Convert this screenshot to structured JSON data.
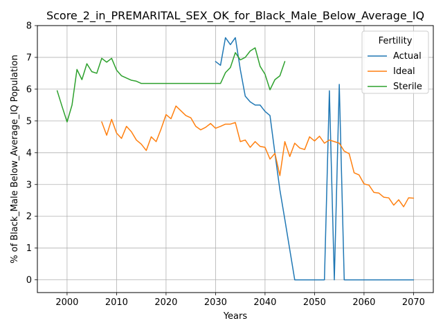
{
  "chart_data": {
    "type": "line",
    "title": "Score_2_in_PREMARITAL_SEX_OK_for_Black_Male_Below_Average_IQ",
    "xlabel": "Years",
    "ylabel": "% of Black_Male Below_Average_IQ Population",
    "xlim": [
      1994,
      2074
    ],
    "ylim": [
      -0.4,
      8.0
    ],
    "x_ticks": [
      2000,
      2010,
      2020,
      2030,
      2040,
      2050,
      2060,
      2070
    ],
    "y_ticks": [
      0,
      1,
      2,
      3,
      4,
      5,
      6,
      7,
      8
    ],
    "grid": true,
    "legend": {
      "title": "Fertility",
      "placement": "top-right"
    },
    "series": [
      {
        "name": "Actual",
        "color": "#1f77b4",
        "x": [
          2030,
          2031,
          2032,
          2033,
          2034,
          2035,
          2036,
          2037,
          2038,
          2039,
          2040,
          2041,
          2042,
          2043,
          2044,
          2045,
          2046,
          2047,
          2048,
          2049,
          2050,
          2051,
          2052,
          2053,
          2054,
          2055,
          2056,
          2057,
          2058,
          2059,
          2060,
          2061,
          2062,
          2063,
          2064,
          2065,
          2066,
          2067,
          2068,
          2069,
          2070
        ],
        "y": [
          6.87,
          6.75,
          7.62,
          7.4,
          7.62,
          6.62,
          5.78,
          5.6,
          5.5,
          5.5,
          5.3,
          5.17,
          3.98,
          2.83,
          1.9,
          0.95,
          0.0,
          0.0,
          0.0,
          0.0,
          0.0,
          0.0,
          0.0,
          5.95,
          0.0,
          6.15,
          0.0,
          0.0,
          0.0,
          0.0,
          0.0,
          0.0,
          0.0,
          0.0,
          0.0,
          0.0,
          0.0,
          0.0,
          0.0,
          0.0,
          0.0
        ]
      },
      {
        "name": "Ideal",
        "color": "#ff7f0e",
        "x": [
          2007,
          2008,
          2009,
          2010,
          2011,
          2012,
          2013,
          2014,
          2015,
          2016,
          2017,
          2018,
          2019,
          2020,
          2021,
          2022,
          2023,
          2024,
          2025,
          2026,
          2027,
          2028,
          2029,
          2030,
          2031,
          2032,
          2033,
          2034,
          2035,
          2036,
          2037,
          2038,
          2039,
          2040,
          2041,
          2042,
          2043,
          2044,
          2045,
          2046,
          2047,
          2048,
          2049,
          2050,
          2051,
          2052,
          2053,
          2054,
          2055,
          2056,
          2057,
          2058,
          2059,
          2060,
          2061,
          2062,
          2063,
          2064,
          2065,
          2066,
          2067,
          2068,
          2069,
          2070
        ],
        "y": [
          4.97,
          4.55,
          5.05,
          4.62,
          4.45,
          4.83,
          4.66,
          4.4,
          4.27,
          4.07,
          4.5,
          4.35,
          4.75,
          5.2,
          5.07,
          5.47,
          5.32,
          5.17,
          5.1,
          4.83,
          4.72,
          4.8,
          4.92,
          4.77,
          4.83,
          4.9,
          4.9,
          4.95,
          4.35,
          4.4,
          4.17,
          4.35,
          4.2,
          4.17,
          3.8,
          3.98,
          3.28,
          4.35,
          3.88,
          4.3,
          4.15,
          4.1,
          4.5,
          4.37,
          4.52,
          4.3,
          4.4,
          4.35,
          4.3,
          4.05,
          3.97,
          3.37,
          3.3,
          3.02,
          2.98,
          2.75,
          2.73,
          2.6,
          2.58,
          2.35,
          2.52,
          2.3,
          2.58,
          2.57
        ]
      },
      {
        "name": "Sterile",
        "color": "#2ca02c",
        "x": [
          1998,
          1999,
          2000,
          2001,
          2002,
          2003,
          2004,
          2005,
          2006,
          2007,
          2008,
          2009,
          2010,
          2011,
          2012,
          2013,
          2014,
          2015,
          2016,
          2017,
          2018,
          2019,
          2020,
          2021,
          2022,
          2023,
          2024,
          2025,
          2026,
          2027,
          2028,
          2029,
          2030,
          2031,
          2032,
          2033,
          2034,
          2035,
          2036,
          2037,
          2038,
          2039,
          2040,
          2041,
          2042,
          2043,
          2044
        ],
        "y": [
          5.95,
          5.45,
          4.97,
          5.5,
          6.62,
          6.3,
          6.8,
          6.55,
          6.5,
          6.97,
          6.85,
          6.97,
          6.6,
          6.42,
          6.35,
          6.28,
          6.25,
          6.18,
          6.18,
          6.18,
          6.18,
          6.18,
          6.18,
          6.18,
          6.18,
          6.18,
          6.18,
          6.18,
          6.18,
          6.18,
          6.18,
          6.18,
          6.18,
          6.18,
          6.52,
          6.68,
          7.15,
          6.92,
          7.0,
          7.2,
          7.3,
          6.72,
          6.47,
          5.98,
          6.3,
          6.42,
          6.87
        ]
      }
    ]
  }
}
